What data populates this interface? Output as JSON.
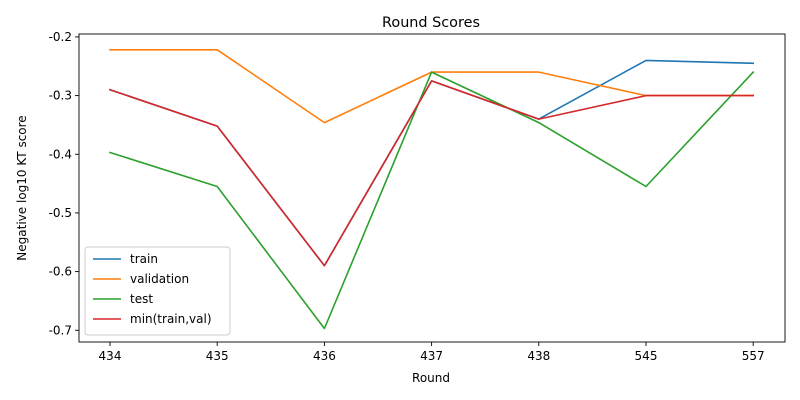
{
  "chart_data": {
    "type": "line",
    "title": "Round Scores",
    "xlabel": "Round",
    "ylabel": "Negative log10 KT score",
    "categories": [
      "434",
      "435",
      "436",
      "437",
      "438",
      "545",
      "557"
    ],
    "ylim": [
      -0.72,
      -0.195
    ],
    "yticks": [
      "-0.2",
      "-0.3",
      "-0.4",
      "-0.5",
      "-0.6",
      "-0.7"
    ],
    "ytick_values": [
      -0.2,
      -0.3,
      -0.4,
      -0.5,
      -0.6,
      -0.7
    ],
    "grid": false,
    "legend_position": "lower-left",
    "series": [
      {
        "name": "train",
        "color": "#1f77b4",
        "values": [
          -0.29,
          -0.352,
          -0.59,
          -0.275,
          -0.34,
          -0.24,
          -0.245
        ]
      },
      {
        "name": "validation",
        "color": "#ff7f0e",
        "values": [
          -0.222,
          -0.222,
          -0.346,
          -0.26,
          -0.26,
          -0.3,
          -0.3
        ]
      },
      {
        "name": "test",
        "color": "#2ca02c",
        "values": [
          -0.397,
          -0.455,
          -0.697,
          -0.26,
          -0.346,
          -0.455,
          -0.26
        ]
      },
      {
        "name": "min(train,val)",
        "color": "#d62728",
        "values": [
          -0.29,
          -0.352,
          -0.59,
          -0.275,
          -0.34,
          -0.3,
          -0.3
        ]
      }
    ]
  }
}
